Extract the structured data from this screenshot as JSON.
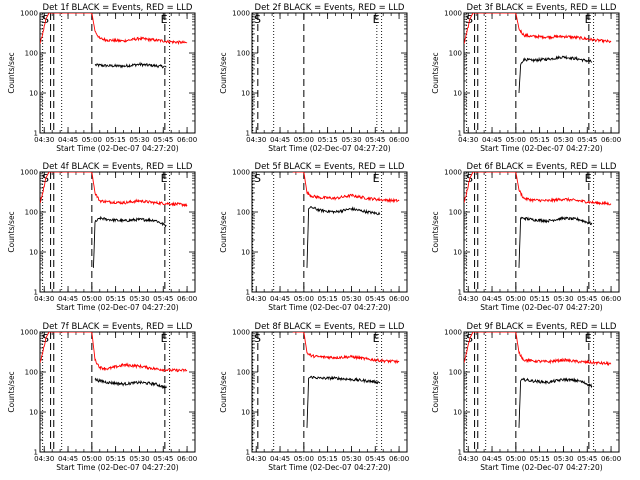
{
  "chart_data": {
    "type": "line",
    "yscale": "log",
    "ylim": [
      1,
      1000
    ],
    "yticks": [
      1,
      10,
      100,
      1000
    ],
    "ylabel": "Counts/sec",
    "xlabel": "Start Time (02-Dec-07 04:27:20)",
    "xlim": [
      "04:27:20",
      "06:05:00"
    ],
    "xticks": [
      "04:30",
      "04:45",
      "05:00",
      "05:15",
      "05:30",
      "05:45",
      "06:00"
    ],
    "markers": {
      "start": "S",
      "end": "E"
    },
    "panels": [
      {
        "title": "Det 1f BLACK = Events, RED = LLD",
        "dashed_lines": [
          "04:34",
          "04:36",
          "05:00",
          "05:46"
        ],
        "dotted_lines": [
          "04:29",
          "04:41",
          "05:49"
        ],
        "series": [
          {
            "name": "Events",
            "color": "#000000",
            "x": [
              "05:02",
              "05:10",
              "05:20",
              "05:30",
              "05:40",
              "05:47"
            ],
            "values": [
              50,
              48,
              47,
              52,
              48,
              45
            ]
          },
          {
            "name": "LLD",
            "color": "#ff0000",
            "x": [
              "04:27:20",
              "04:29",
              "04:31",
              "04:33",
              "04:34",
              "05:00",
              "05:02",
              "05:05",
              "05:10",
              "05:20",
              "05:30",
              "05:40",
              "05:50",
              "06:00"
            ],
            "values": [
              170,
              300,
              700,
              1000,
              1000,
              1000,
              350,
              230,
              210,
              200,
              230,
              210,
              190,
              180
            ]
          }
        ]
      },
      {
        "title": "Det 2f BLACK = Events, RED = LLD",
        "dashed_lines": [
          "04:31",
          "05:00"
        ],
        "dotted_lines": [
          "04:27:50",
          "04:41",
          "05:46",
          "05:49"
        ],
        "series": []
      },
      {
        "title": "Det 3f BLACK = Events, RED = LLD",
        "dashed_lines": [
          "04:34",
          "04:36",
          "05:00",
          "05:46"
        ],
        "dotted_lines": [
          "04:29",
          "04:41",
          "05:49"
        ],
        "series": [
          {
            "name": "Events",
            "color": "#000000",
            "x": [
              "05:02",
              "05:03",
              "05:05",
              "05:10",
              "05:20",
              "05:30",
              "05:40",
              "05:48"
            ],
            "values": [
              10,
              50,
              70,
              65,
              70,
              80,
              70,
              60
            ]
          },
          {
            "name": "LLD",
            "color": "#ff0000",
            "x": [
              "04:27:20",
              "04:29",
              "04:31",
              "04:33",
              "04:34",
              "05:00",
              "05:02",
              "05:05",
              "05:10",
              "05:20",
              "05:30",
              "05:40",
              "05:50",
              "06:00"
            ],
            "values": [
              170,
              300,
              700,
              1000,
              1000,
              1000,
              400,
              280,
              260,
              250,
              260,
              240,
              210,
              190
            ]
          }
        ]
      },
      {
        "title": "Det 4f BLACK = Events, RED = LLD",
        "dashed_lines": [
          "04:34",
          "04:36",
          "05:00",
          "05:46"
        ],
        "dotted_lines": [
          "04:29",
          "04:41",
          "05:49"
        ],
        "series": [
          {
            "name": "Events",
            "color": "#000000",
            "x": [
              "05:01",
              "05:02",
              "05:05",
              "05:10",
              "05:20",
              "05:30",
              "05:40",
              "05:47"
            ],
            "values": [
              4,
              55,
              70,
              65,
              60,
              65,
              62,
              45
            ]
          },
          {
            "name": "LLD",
            "color": "#ff0000",
            "x": [
              "04:27:20",
              "04:29",
              "04:31",
              "04:33",
              "04:34",
              "05:00",
              "05:02",
              "05:05",
              "05:10",
              "05:20",
              "05:30",
              "05:40",
              "05:50",
              "06:00"
            ],
            "values": [
              170,
              300,
              700,
              1000,
              1000,
              1000,
              300,
              190,
              180,
              170,
              190,
              170,
              160,
              150
            ]
          }
        ]
      },
      {
        "title": "Det 5f BLACK = Events, RED = LLD",
        "dashed_lines": [
          "05:00"
        ],
        "dotted_lines": [
          "04:27:50",
          "04:41",
          "05:49"
        ],
        "series": [
          {
            "name": "Events",
            "color": "#000000",
            "x": [
              "05:02",
              "05:03",
              "05:05",
              "05:10",
              "05:20",
              "05:30",
              "05:40",
              "05:48"
            ],
            "values": [
              4,
              120,
              130,
              110,
              100,
              120,
              100,
              90
            ]
          },
          {
            "name": "LLD",
            "color": "#ff0000",
            "x": [
              "04:53",
              "05:00",
              "05:02",
              "05:05",
              "05:10",
              "05:20",
              "05:30",
              "05:40",
              "05:50",
              "06:00"
            ],
            "values": [
              1000,
              1000,
              300,
              250,
              230,
              220,
              260,
              220,
              200,
              190
            ]
          }
        ]
      },
      {
        "title": "Det 6f BLACK = Events, RED = LLD",
        "dashed_lines": [
          "04:34",
          "04:36",
          "05:00",
          "05:46"
        ],
        "dotted_lines": [
          "04:29",
          "04:41",
          "05:49"
        ],
        "series": [
          {
            "name": "Events",
            "color": "#000000",
            "x": [
              "05:02",
              "05:03",
              "05:05",
              "05:10",
              "05:20",
              "05:30",
              "05:40",
              "05:48"
            ],
            "values": [
              4,
              70,
              70,
              65,
              60,
              70,
              65,
              50
            ]
          },
          {
            "name": "LLD",
            "color": "#ff0000",
            "x": [
              "04:27:20",
              "04:29",
              "04:31",
              "04:33",
              "04:34",
              "05:00",
              "05:02",
              "05:05",
              "05:10",
              "05:20",
              "05:30",
              "05:40",
              "05:50",
              "06:00"
            ],
            "values": [
              170,
              300,
              700,
              1000,
              1000,
              1000,
              350,
              220,
              200,
              190,
              210,
              190,
              170,
              160
            ]
          }
        ]
      },
      {
        "title": "Det 7f BLACK = Events, RED = LLD",
        "dashed_lines": [
          "04:34",
          "04:36",
          "05:00",
          "05:46"
        ],
        "dotted_lines": [
          "04:29",
          "04:41",
          "05:49"
        ],
        "series": [
          {
            "name": "Events",
            "color": "#000000",
            "x": [
              "05:02",
              "05:05",
              "05:10",
              "05:20",
              "05:30",
              "05:40",
              "05:47"
            ],
            "values": [
              65,
              60,
              55,
              50,
              55,
              50,
              40
            ]
          },
          {
            "name": "LLD",
            "color": "#ff0000",
            "x": [
              "04:27:20",
              "04:29",
              "04:31",
              "04:33",
              "04:34",
              "05:00",
              "05:02",
              "05:05",
              "05:10",
              "05:20",
              "05:30",
              "05:40",
              "05:50",
              "06:00"
            ],
            "values": [
              170,
              300,
              700,
              1000,
              1000,
              1000,
              200,
              130,
              120,
              150,
              140,
              120,
              110,
              110
            ]
          }
        ]
      },
      {
        "title": "Det 8f BLACK = Events, RED = LLD",
        "dashed_lines": [
          "04:31",
          "05:00"
        ],
        "dotted_lines": [
          "04:27:50",
          "04:41",
          "05:46",
          "05:49"
        ],
        "series": [
          {
            "name": "Events",
            "color": "#000000",
            "x": [
              "05:02",
              "05:03",
              "05:05",
              "05:10",
              "05:20",
              "05:30",
              "05:40",
              "05:48"
            ],
            "values": [
              4,
              70,
              75,
              70,
              70,
              65,
              60,
              55
            ]
          },
          {
            "name": "LLD",
            "color": "#ff0000",
            "x": [
              "04:53",
              "05:00",
              "05:02",
              "05:05",
              "05:10",
              "05:20",
              "05:30",
              "05:40",
              "05:50",
              "06:00"
            ],
            "values": [
              1000,
              1000,
              300,
              250,
              240,
              230,
              240,
              210,
              190,
              180
            ]
          }
        ]
      },
      {
        "title": "Det 9f BLACK = Events, RED = LLD",
        "dashed_lines": [
          "04:34",
          "04:36",
          "05:00",
          "05:46"
        ],
        "dotted_lines": [
          "04:29",
          "04:41",
          "05:49"
        ],
        "series": [
          {
            "name": "Events",
            "color": "#000000",
            "x": [
              "05:02",
              "05:03",
              "05:05",
              "05:10",
              "05:20",
              "05:30",
              "05:40",
              "05:48"
            ],
            "values": [
              4,
              60,
              65,
              60,
              55,
              65,
              60,
              45
            ]
          },
          {
            "name": "LLD",
            "color": "#ff0000",
            "x": [
              "04:27:20",
              "04:29",
              "04:31",
              "04:33",
              "04:34",
              "05:00",
              "05:02",
              "05:05",
              "05:10",
              "05:20",
              "05:30",
              "05:40",
              "05:50",
              "06:00"
            ],
            "values": [
              170,
              300,
              700,
              1000,
              1000,
              1000,
              300,
              200,
              190,
              180,
              200,
              180,
              170,
              160
            ]
          }
        ]
      }
    ]
  }
}
